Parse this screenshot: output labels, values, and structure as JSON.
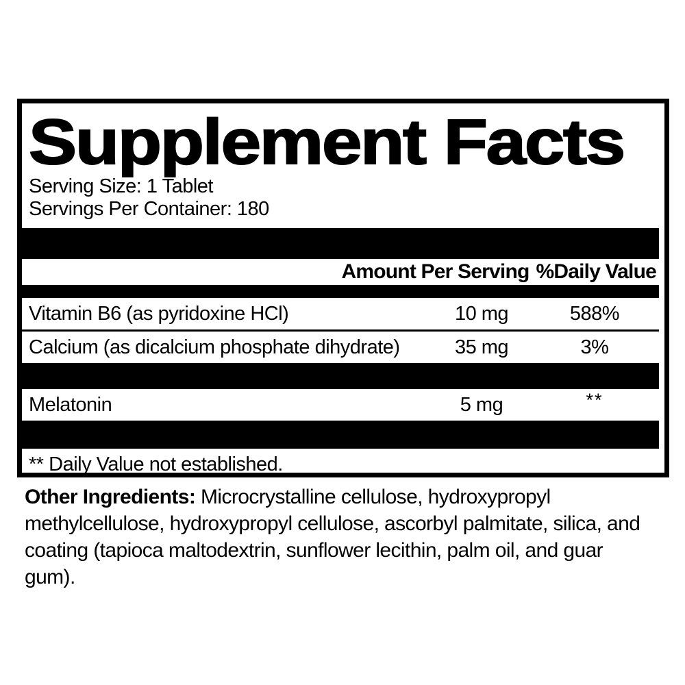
{
  "colors": {
    "ink": "#000000",
    "background": "#ffffff"
  },
  "panel": {
    "title": "Supplement Facts",
    "serving_size": "Serving Size: 1 Tablet",
    "servings_per_container": "Servings Per Container: 180",
    "header": {
      "amount_label": "Amount Per Serving",
      "daily_value_label": "%Daily Value"
    },
    "rows": [
      {
        "name": "Vitamin B6 (as pyridoxine HCl)",
        "amount": "10 mg",
        "daily_value": "588%"
      },
      {
        "name": "Calcium (as dicalcium phosphate dihydrate)",
        "amount": "35 mg",
        "daily_value": "3%"
      },
      {
        "name": "Melatonin",
        "amount": "5 mg",
        "daily_value": "**"
      }
    ],
    "footnote": "** Daily Value not established."
  },
  "other_ingredients": {
    "label": "Other Ingredients:",
    "text": "Microcrystalline cellulose, hydroxypropyl methylcellulose, hydroxypropyl cellulose, ascorbyl palmitate, silica, and coating (tapioca maltodextrin, sunflower lecithin, palm oil, and guar gum)."
  }
}
